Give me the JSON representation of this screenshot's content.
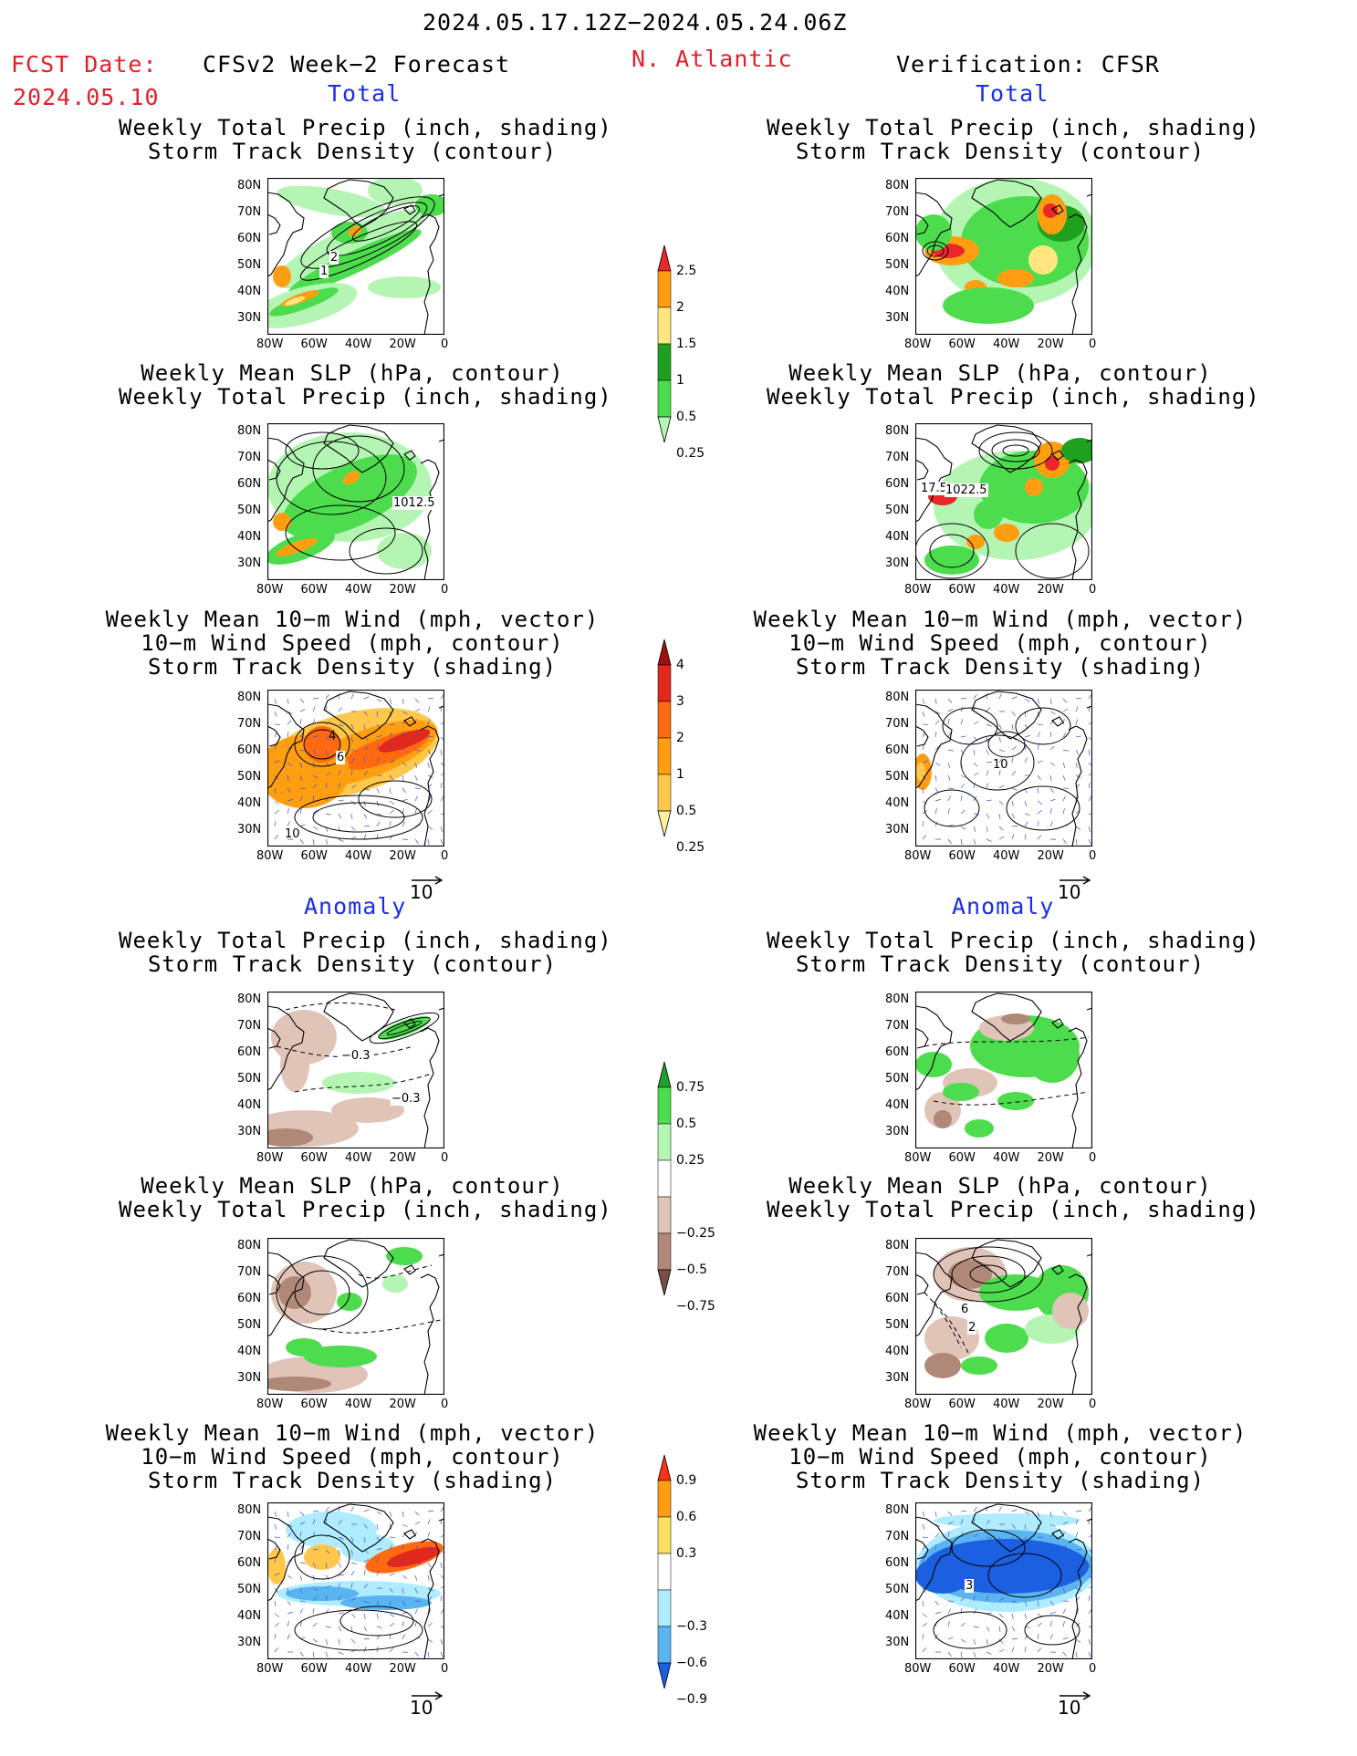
{
  "header": {
    "date_range": "2024.05.17.12Z−2024.05.24.06Z",
    "fcst_label": "FCST Date:",
    "fcst_date": "2024.05.10",
    "model": "CFSv2 Week−2 Forecast",
    "region": "N. Atlantic",
    "verification": "Verification: CFSR"
  },
  "sections": {
    "total": "Total",
    "anomaly": "Anomaly"
  },
  "titles": {
    "precip_storm": [
      "Weekly Total Precip (inch, shading)",
      "Storm Track Density (contour)"
    ],
    "slp_precip": [
      "Weekly Mean SLP (hPa, contour)",
      "Weekly Total Precip (inch, shading)"
    ],
    "wind_storm": [
      "Weekly Mean 10−m Wind (mph, vector)",
      "10−m Wind Speed (mph, contour)",
      "Storm Track Density (shading)"
    ]
  },
  "axes": {
    "lat_ticks": [
      "80N",
      "70N",
      "60N",
      "50N",
      "40N",
      "30N"
    ],
    "lon_ticks": [
      "80W",
      "60W",
      "40W",
      "20W",
      "0"
    ]
  },
  "vector_ref": "10",
  "map_labels": {
    "fc_precip_1": "2",
    "fc_precip_2": "1",
    "fc_slp": "1012.5",
    "ver_slp_1": "17.5",
    "ver_slp_2": "1022.5",
    "fc_wind_1": "4",
    "fc_wind_2": "6",
    "fc_wind_3": "10",
    "ver_wind": "10",
    "fc_anom_precip_1": "−0.3",
    "fc_anom_precip_2": "−0.3",
    "ver_anom_slp_1": "6",
    "ver_anom_slp_2": "2",
    "ver_anom_wind": "3"
  },
  "colorbars": {
    "precip_total": {
      "labels": [
        "2.5",
        "2",
        "1.5",
        "1",
        "0.5",
        "0.25"
      ],
      "colors": [
        "#e8282a",
        "#ff9e10",
        "#ffe680",
        "#1fa01f",
        "#4ddc4d",
        "#b4f5b4"
      ]
    },
    "storm_total": {
      "labels": [
        "4",
        "3",
        "2",
        "1",
        "0.5",
        "0.25"
      ],
      "colors": [
        "#a01010",
        "#e0281c",
        "#ff6a10",
        "#ff9e10",
        "#ffc84a",
        "#fff0a0"
      ]
    },
    "precip_anom": {
      "labels": [
        "0.75",
        "0.5",
        "0.25",
        "−0.25",
        "−0.5",
        "−0.75"
      ],
      "colors": [
        "#20a030",
        "#4ddc4d",
        "#b4f5b4",
        "#ffffff",
        "#e0c4b8",
        "#b08878",
        "#7a5044"
      ]
    },
    "storm_anom": {
      "labels": [
        "0.9",
        "0.6",
        "0.3",
        "−0.3",
        "−0.6",
        "−0.9"
      ],
      "colors": [
        "#ff3018",
        "#ff9e10",
        "#ffe060",
        "#ffffff",
        "#b0ecff",
        "#5ab4f0",
        "#1a60e0"
      ]
    }
  }
}
